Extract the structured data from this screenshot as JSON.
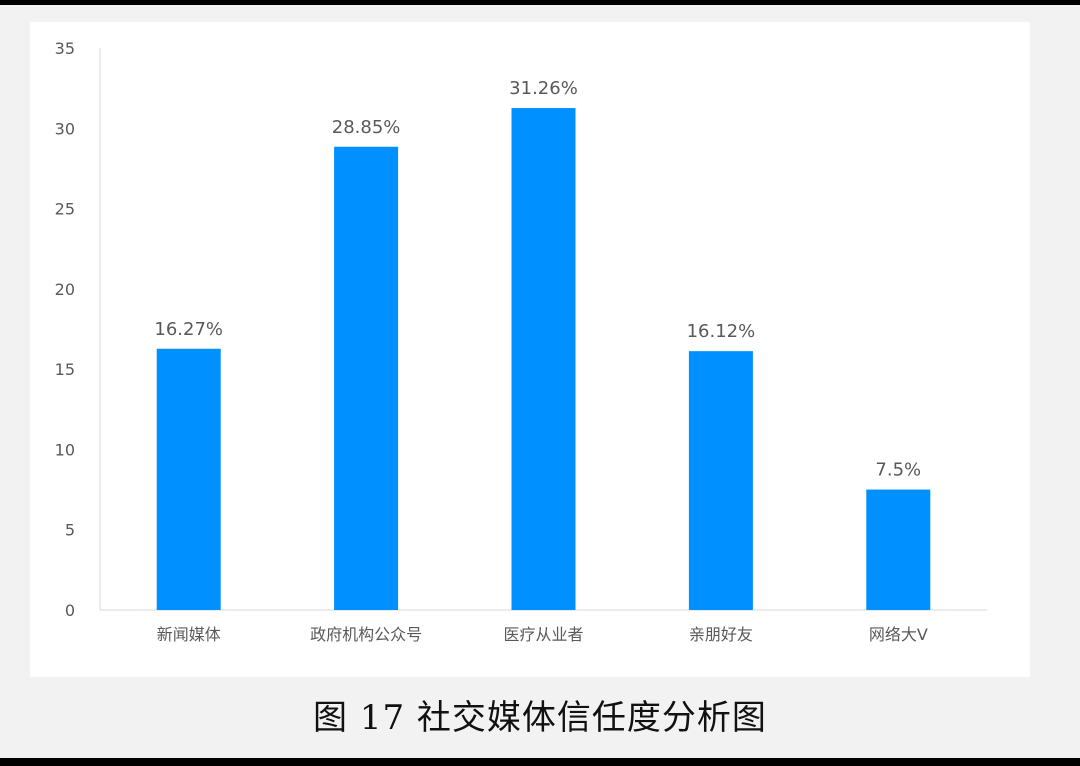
{
  "caption": "图 17 社交媒体信任度分析图",
  "chart_data": {
    "type": "bar",
    "categories": [
      "新闻媒体",
      "政府机构公众号",
      "医疗从业者",
      "亲朋好友",
      "网络大V"
    ],
    "values": [
      16.27,
      28.85,
      31.26,
      16.12,
      7.5
    ],
    "data_labels": [
      "16.27%",
      "28.85%",
      "31.26%",
      "16.12%",
      "7.5%"
    ],
    "title": "",
    "xlabel": "",
    "ylabel": "",
    "ylim": [
      0,
      35
    ],
    "yticks": [
      0,
      5,
      10,
      15,
      20,
      25,
      30,
      35
    ],
    "grid": false,
    "legend": "none",
    "bar_color": "#0090ff"
  }
}
